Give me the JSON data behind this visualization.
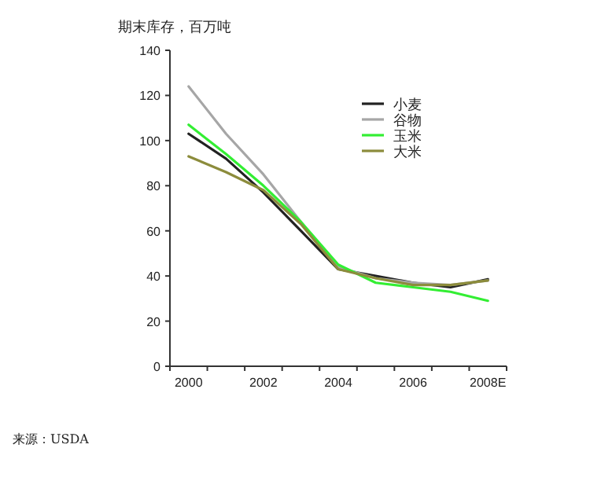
{
  "chart_data": {
    "type": "line",
    "ylabel": "期末库存，百万吨",
    "categories": [
      "2000",
      null,
      "2002",
      null,
      "2004",
      null,
      "2006",
      null,
      "2008E"
    ],
    "ylim": [
      0,
      140
    ],
    "yticks": [
      0,
      20,
      40,
      60,
      80,
      100,
      120,
      140
    ],
    "grid": false,
    "legend": "top right",
    "series": [
      {
        "name": "小麦",
        "color": "#222222",
        "values": [
          103,
          92,
          77,
          60,
          43,
          40,
          37,
          35,
          38.5
        ]
      },
      {
        "name": "谷物",
        "color": "#a6a6a6",
        "values": [
          124,
          103,
          85,
          64,
          44,
          39,
          37,
          36,
          38
        ]
      },
      {
        "name": "玉米",
        "color": "#33ee33",
        "values": [
          107,
          94,
          80,
          64,
          45,
          37,
          35,
          33,
          29
        ]
      },
      {
        "name": "大米",
        "color": "#8c8c3c",
        "values": [
          93,
          86,
          78,
          63,
          43,
          39,
          36,
          36,
          38
        ]
      }
    ],
    "annotations": [
      "来源：USDA"
    ]
  }
}
